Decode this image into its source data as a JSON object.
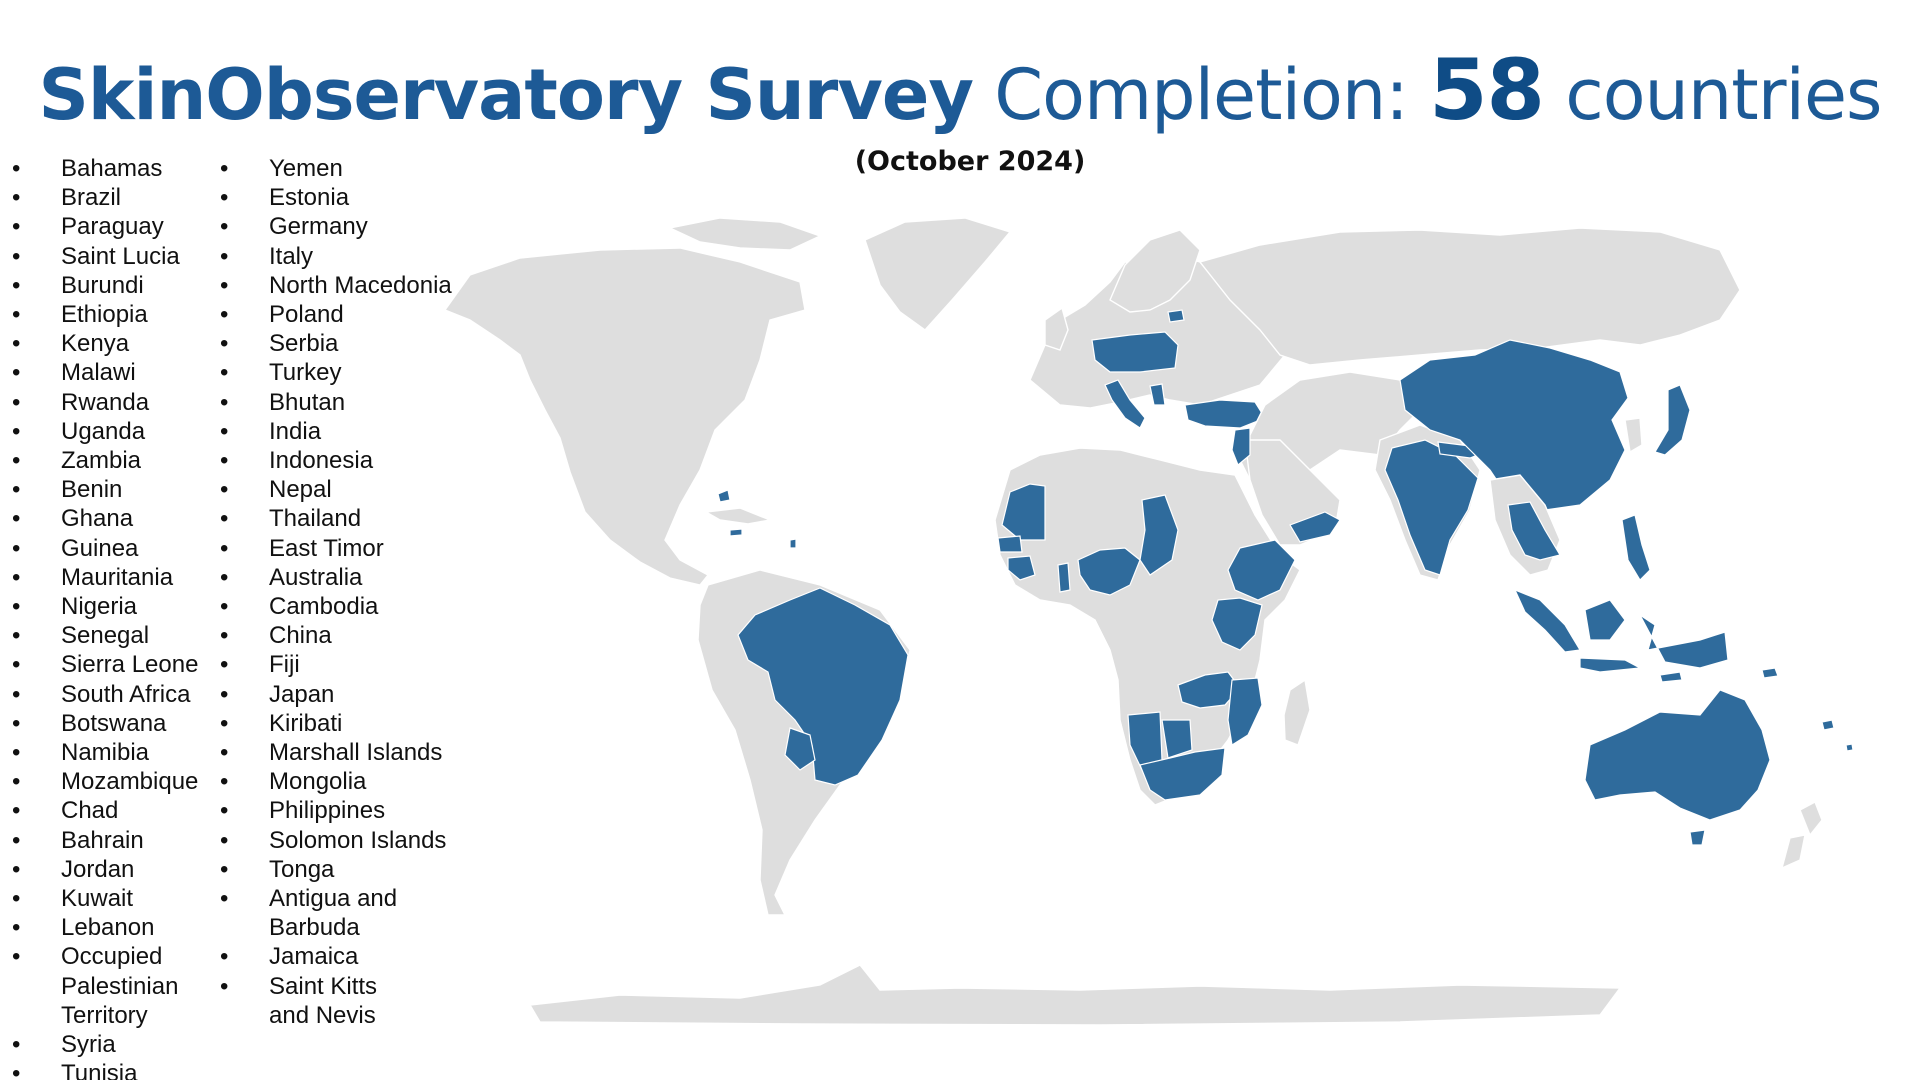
{
  "title": {
    "part_bold": "SkinObservatory Survey",
    "part_light": "Completion:",
    "count": "58",
    "suffix": "countries"
  },
  "subtitle": "(October 2024)",
  "bullet": "•",
  "column_1": [
    "Bahamas",
    "Brazil",
    "Paraguay",
    "Saint Lucia",
    "Burundi",
    "Ethiopia",
    "Kenya",
    "Malawi",
    "Rwanda",
    "Uganda",
    "Zambia",
    "Benin",
    "Ghana",
    "Guinea",
    "Mauritania",
    "Nigeria",
    "Senegal",
    "Sierra Leone",
    "South Africa",
    "Botswana",
    "Namibia",
    "Mozambique",
    "Chad",
    "Bahrain",
    "Jordan",
    "Kuwait",
    "Lebanon",
    "Occupied Palestinian Territory",
    "Syria",
    "Tunisia"
  ],
  "column_2": [
    "Yemen",
    "Estonia",
    "Germany",
    "Italy",
    "North Macedonia",
    "Poland",
    "Serbia",
    "Turkey",
    "Bhutan",
    "India",
    "Indonesia",
    "Nepal",
    "Thailand",
    "East Timor",
    "Australia",
    "Cambodia",
    "China",
    "Fiji",
    "Japan",
    "Kiribati",
    "Marshall Islands",
    "Mongolia",
    "Philippines",
    "Solomon Islands",
    "Tonga",
    "Antigua and Barbuda",
    "Jamaica",
    "Saint Kitts and Nevis"
  ],
  "map": {
    "land_color": "#dedede",
    "highlight_color": "#2f6b9c"
  }
}
